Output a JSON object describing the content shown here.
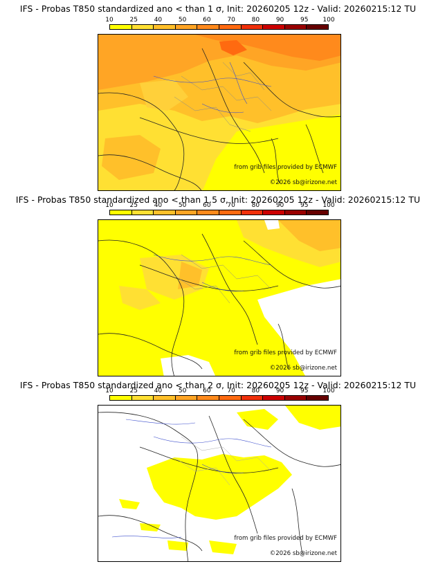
{
  "colorbar": {
    "ticks": [
      "10",
      "25",
      "40",
      "50",
      "60",
      "70",
      "80",
      "90",
      "95",
      "100"
    ],
    "colors": [
      "#ffff00",
      "#ffe033",
      "#ffc02a",
      "#ffa525",
      "#ff8a1c",
      "#ff6a10",
      "#f0300a",
      "#cc0000",
      "#990000",
      "#660000"
    ]
  },
  "panels": [
    {
      "title": "IFS - Probas T850  standardized ano < than 1 σ, Init: 20260205 12z - Valid: 20260215:12 TU",
      "credit_grib": "from grib files provided by ECMWF",
      "credit_copy": "©2026 sb@irizone.net"
    },
    {
      "title": "IFS - Probas T850  standardized ano < than 1.5 σ, Init: 20260205 12z - Valid: 20260215:12 TU",
      "credit_grib": "from grib files provided by ECMWF",
      "credit_copy": "©2026 sb@irizone.net"
    },
    {
      "title": "IFS - Probas T850  standardized ano < than 2 σ, Init: 20260205 12z - Valid: 20260215:12 TU",
      "credit_grib": "from grib files provided by ECMWF",
      "credit_copy": "©2026 sb@irizone.net"
    }
  ]
}
